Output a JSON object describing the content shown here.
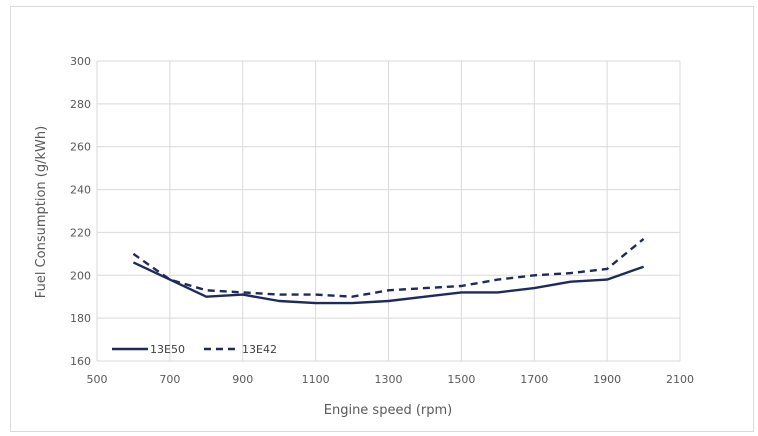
{
  "chart_data": {
    "type": "line",
    "xlabel": "Engine speed (rpm)",
    "ylabel": "Fuel Consumption (g/kWh)",
    "xlim": [
      500,
      2100
    ],
    "ylim": [
      160,
      300
    ],
    "x_ticks": [
      500,
      700,
      900,
      1100,
      1300,
      1500,
      1700,
      1900,
      2100
    ],
    "y_ticks": [
      160,
      180,
      200,
      220,
      240,
      260,
      280,
      300
    ],
    "grid": true,
    "legend_position": "bottom-left",
    "series": [
      {
        "name": "13E50",
        "style": "solid",
        "color": "#1f2a5c",
        "x": [
          600,
          700,
          800,
          900,
          1000,
          1100,
          1200,
          1300,
          1400,
          1500,
          1600,
          1700,
          1800,
          1900,
          2000
        ],
        "y": [
          206,
          198,
          190,
          191,
          188,
          187,
          187,
          188,
          190,
          192,
          192,
          194,
          197,
          198,
          204
        ]
      },
      {
        "name": "13E42",
        "style": "dashed",
        "color": "#1f2a5c",
        "x": [
          600,
          700,
          800,
          900,
          1000,
          1100,
          1200,
          1300,
          1400,
          1500,
          1600,
          1700,
          1800,
          1900,
          2000
        ],
        "y": [
          210,
          198,
          193,
          192,
          191,
          191,
          190,
          193,
          194,
          195,
          198,
          200,
          201,
          203,
          217
        ]
      }
    ]
  }
}
